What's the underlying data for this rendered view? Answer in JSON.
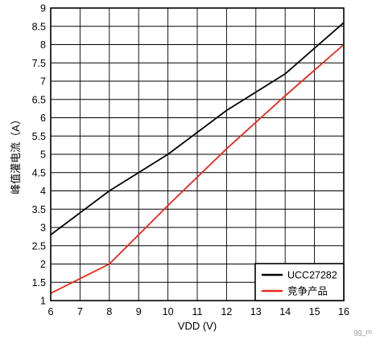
{
  "chart_data": {
    "type": "line",
    "title": "",
    "xlabel": "VDD (V)",
    "ylabel": "峰值灌电流（A）",
    "xlim": [
      6,
      16
    ],
    "ylim": [
      1,
      9
    ],
    "x_ticks": [
      "6",
      "7",
      "8",
      "9",
      "10",
      "11",
      "12",
      "13",
      "14",
      "15",
      "16"
    ],
    "y_ticks": [
      "1",
      "1.5",
      "2",
      "2.5",
      "3",
      "3.5",
      "4",
      "4.5",
      "5",
      "5.5",
      "6",
      "6.5",
      "7",
      "7.5",
      "8",
      "8.5",
      "9"
    ],
    "grid": true,
    "legend_position": "bottom-right",
    "series": [
      {
        "name": "UCC27282",
        "color": "#000000",
        "points": [
          [
            6,
            2.8
          ],
          [
            8,
            4.0
          ],
          [
            10,
            5.0
          ],
          [
            12,
            6.2
          ],
          [
            14,
            7.2
          ],
          [
            16,
            8.6
          ]
        ]
      },
      {
        "name": "竞争产品",
        "color": "#e8281e",
        "points": [
          [
            6,
            1.2
          ],
          [
            8,
            2.0
          ],
          [
            10,
            3.6
          ],
          [
            12,
            5.15
          ],
          [
            14,
            6.6
          ],
          [
            16,
            8.0
          ]
        ]
      }
    ]
  },
  "watermark": "gg_m"
}
